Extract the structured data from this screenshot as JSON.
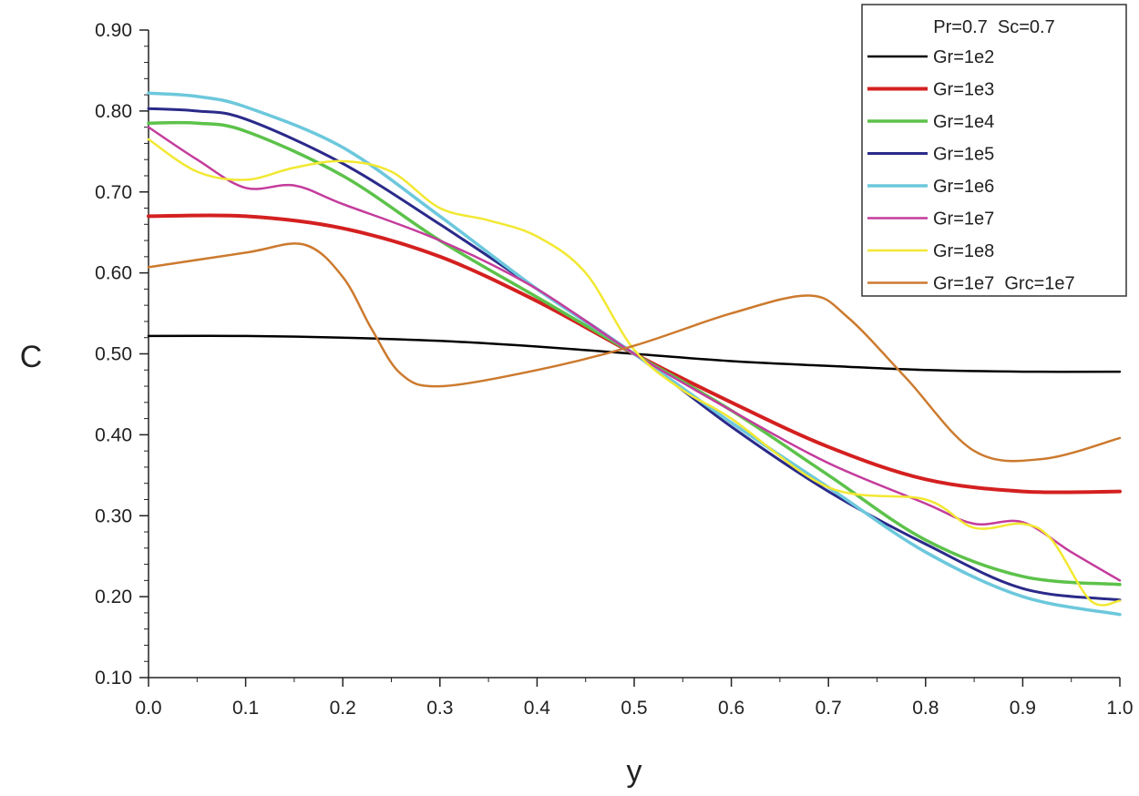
{
  "chart_data": {
    "type": "line",
    "xlabel": "y",
    "ylabel": "C",
    "xlim": [
      0.0,
      1.0
    ],
    "ylim": [
      0.1,
      0.9
    ],
    "grid": false,
    "legend_position": "top-right",
    "legend_title": "Pr=0.7  Sc=0.7",
    "x_ticks": [
      "0.0",
      "0.1",
      "0.2",
      "0.3",
      "0.4",
      "0.5",
      "0.6",
      "0.7",
      "0.8",
      "0.9",
      "1.0"
    ],
    "y_ticks": [
      "0.10",
      "0.20",
      "0.30",
      "0.40",
      "0.50",
      "0.60",
      "0.70",
      "0.80",
      "0.90"
    ],
    "series": [
      {
        "name": "Gr=1e2",
        "color": "#000000",
        "x": [
          0,
          0.1,
          0.2,
          0.3,
          0.4,
          0.5,
          0.6,
          0.7,
          0.8,
          0.9,
          1.0
        ],
        "y": [
          0.522,
          0.522,
          0.52,
          0.516,
          0.509,
          0.5,
          0.491,
          0.485,
          0.48,
          0.478,
          0.478
        ]
      },
      {
        "name": "Gr=1e3",
        "color": "#d42020",
        "x": [
          0,
          0.1,
          0.2,
          0.3,
          0.4,
          0.5,
          0.6,
          0.7,
          0.8,
          0.9,
          1.0
        ],
        "y": [
          0.67,
          0.67,
          0.655,
          0.62,
          0.565,
          0.5,
          0.44,
          0.385,
          0.345,
          0.33,
          0.33
        ]
      },
      {
        "name": "Gr=1e4",
        "color": "#5cc24a",
        "x": [
          0,
          0.05,
          0.1,
          0.2,
          0.3,
          0.4,
          0.5,
          0.6,
          0.7,
          0.8,
          0.9,
          1.0
        ],
        "y": [
          0.785,
          0.785,
          0.775,
          0.72,
          0.64,
          0.57,
          0.5,
          0.43,
          0.35,
          0.27,
          0.225,
          0.215
        ]
      },
      {
        "name": "Gr=1e5",
        "color": "#2a2a8a",
        "x": [
          0,
          0.05,
          0.1,
          0.2,
          0.3,
          0.4,
          0.5,
          0.6,
          0.7,
          0.8,
          0.9,
          1.0
        ],
        "y": [
          0.803,
          0.8,
          0.79,
          0.735,
          0.66,
          0.58,
          0.5,
          0.41,
          0.33,
          0.265,
          0.21,
          0.196
        ]
      },
      {
        "name": "Gr=1e6",
        "color": "#6cc8dc",
        "x": [
          0,
          0.05,
          0.1,
          0.2,
          0.3,
          0.4,
          0.5,
          0.6,
          0.7,
          0.8,
          0.9,
          1.0
        ],
        "y": [
          0.822,
          0.818,
          0.805,
          0.755,
          0.67,
          0.58,
          0.5,
          0.415,
          0.335,
          0.255,
          0.2,
          0.178
        ]
      },
      {
        "name": "Gr=1e7",
        "color": "#c43c9c",
        "x": [
          0,
          0.05,
          0.1,
          0.15,
          0.2,
          0.3,
          0.4,
          0.5,
          0.6,
          0.7,
          0.8,
          0.85,
          0.9,
          0.95,
          1.0
        ],
        "y": [
          0.78,
          0.74,
          0.705,
          0.708,
          0.685,
          0.64,
          0.58,
          0.5,
          0.43,
          0.365,
          0.315,
          0.29,
          0.292,
          0.255,
          0.22
        ]
      },
      {
        "name": "Gr=1e8",
        "color": "#f2e832",
        "x": [
          0,
          0.05,
          0.1,
          0.15,
          0.2,
          0.25,
          0.3,
          0.35,
          0.4,
          0.45,
          0.5,
          0.55,
          0.6,
          0.7,
          0.8,
          0.85,
          0.9,
          0.93,
          0.97,
          1.0
        ],
        "y": [
          0.765,
          0.725,
          0.715,
          0.73,
          0.738,
          0.725,
          0.68,
          0.665,
          0.645,
          0.6,
          0.505,
          0.455,
          0.42,
          0.335,
          0.32,
          0.285,
          0.29,
          0.27,
          0.195,
          0.195
        ]
      },
      {
        "name": "Gr=1e7  Grc=1e7",
        "color": "#cc7a2e",
        "x": [
          0,
          0.1,
          0.16,
          0.2,
          0.23,
          0.26,
          0.3,
          0.4,
          0.5,
          0.6,
          0.68,
          0.72,
          0.78,
          0.85,
          0.92,
          1.0
        ],
        "y": [
          0.607,
          0.625,
          0.635,
          0.595,
          0.53,
          0.475,
          0.46,
          0.48,
          0.51,
          0.55,
          0.572,
          0.545,
          0.47,
          0.38,
          0.37,
          0.396
        ]
      }
    ]
  }
}
